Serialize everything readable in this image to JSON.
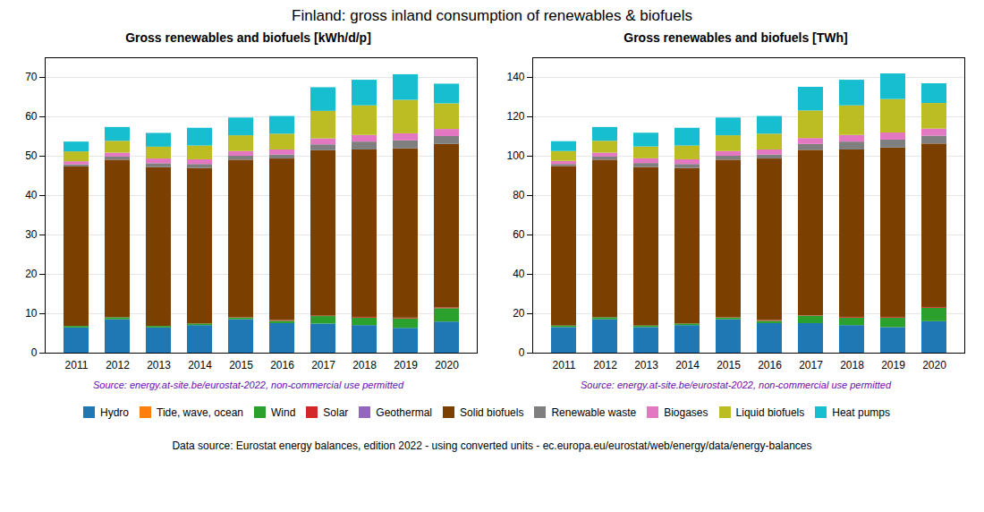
{
  "title": "Finland: gross inland consumption of renewables & biofuels",
  "annotations": [
    "Data source: Eurostat energy balances, edition 2022 - using converted units - ec.europa.eu/eurostat/web/energy/data/energy-balances"
  ],
  "chart_data": [
    {
      "type": "bar",
      "stacked": true,
      "grid": true,
      "subtitle": "Gross renewables and biofuels [kWh/d/p]",
      "annotations": [
        {
          "text": "Source: energy.at-site.be/eurostat-2022, non-commercial use permitted",
          "color": "#6a0dad"
        }
      ],
      "categories": [
        "2011",
        "2012",
        "2013",
        "2014",
        "2015",
        "2016",
        "2017",
        "2018",
        "2019",
        "2020"
      ],
      "ylim": [
        0,
        75
      ],
      "yticks": [
        0,
        10,
        20,
        30,
        40,
        50,
        60,
        70
      ],
      "series": [
        {
          "name": "Hydro",
          "color": "#1f77b4",
          "values": [
            6.4,
            8.5,
            6.4,
            7.0,
            8.5,
            7.5,
            7.4,
            7.0,
            6.3,
            7.9
          ]
        },
        {
          "name": "Tide, wave, ocean",
          "color": "#ff7f0e",
          "values": [
            0.0,
            0.0,
            0.0,
            0.0,
            0.0,
            0.0,
            0.0,
            0.0,
            0.0,
            0.0
          ]
        },
        {
          "name": "Wind",
          "color": "#2ca02c",
          "values": [
            0.4,
            0.5,
            0.4,
            0.4,
            0.4,
            0.6,
            1.9,
            1.9,
            2.4,
            3.4
          ]
        },
        {
          "name": "Solar",
          "color": "#d62728",
          "values": [
            0.0,
            0.0,
            0.0,
            0.0,
            0.1,
            0.2,
            0.1,
            0.2,
            0.2,
            0.2
          ]
        },
        {
          "name": "Geothermal",
          "color": "#9467bd",
          "values": [
            0.0,
            0.0,
            0.0,
            0.0,
            0.0,
            0.0,
            0.0,
            0.0,
            0.0,
            0.0
          ]
        },
        {
          "name": "Solid biofuels",
          "color": "#7B3F00",
          "values": [
            40.5,
            40.0,
            40.3,
            39.5,
            40.0,
            41.0,
            42.0,
            42.5,
            43.0,
            41.5
          ]
        },
        {
          "name": "Renewable waste",
          "color": "#7f7f7f",
          "values": [
            0.5,
            0.8,
            1.0,
            1.0,
            1.0,
            1.0,
            1.5,
            2.0,
            2.0,
            2.0
          ]
        },
        {
          "name": "Biogases",
          "color": "#e377c2",
          "values": [
            0.8,
            1.0,
            1.2,
            1.2,
            1.2,
            1.3,
            1.5,
            1.7,
            1.8,
            1.8
          ]
        },
        {
          "name": "Liquid biofuels",
          "color": "#bcbd22",
          "values": [
            2.5,
            3.0,
            3.0,
            3.5,
            4.0,
            4.0,
            7.0,
            7.5,
            8.5,
            6.5
          ]
        },
        {
          "name": "Heat pumps",
          "color": "#17becf",
          "values": [
            2.5,
            3.5,
            3.5,
            4.5,
            4.5,
            4.5,
            6.0,
            6.5,
            6.5,
            5.0
          ]
        }
      ]
    },
    {
      "type": "bar",
      "stacked": true,
      "grid": true,
      "subtitle": "Gross renewables and biofuels [TWh]",
      "annotations": [
        {
          "text": "Source: energy.at-site.be/eurostat-2022, non-commercial use permitted",
          "color": "#6a0dad"
        }
      ],
      "categories": [
        "2011",
        "2012",
        "2013",
        "2014",
        "2015",
        "2016",
        "2017",
        "2018",
        "2019",
        "2020"
      ],
      "ylim": [
        0,
        150
      ],
      "yticks": [
        0,
        20,
        40,
        60,
        80,
        100,
        120,
        140
      ],
      "series": [
        {
          "name": "Hydro",
          "color": "#1f77b4",
          "values": [
            13.0,
            17.0,
            13.0,
            14.0,
            17.0,
            15.0,
            15.0,
            14.0,
            13.0,
            16.0
          ]
        },
        {
          "name": "Tide, wave, ocean",
          "color": "#ff7f0e",
          "values": [
            0.0,
            0.0,
            0.0,
            0.0,
            0.0,
            0.0,
            0.0,
            0.0,
            0.0,
            0.0
          ]
        },
        {
          "name": "Wind",
          "color": "#2ca02c",
          "values": [
            0.8,
            1.0,
            0.8,
            0.8,
            0.8,
            1.2,
            3.8,
            3.8,
            4.8,
            6.8
          ]
        },
        {
          "name": "Solar",
          "color": "#d62728",
          "values": [
            0.0,
            0.0,
            0.0,
            0.0,
            0.2,
            0.4,
            0.2,
            0.4,
            0.4,
            0.4
          ]
        },
        {
          "name": "Geothermal",
          "color": "#9467bd",
          "values": [
            0.0,
            0.0,
            0.0,
            0.0,
            0.0,
            0.0,
            0.0,
            0.0,
            0.0,
            0.0
          ]
        },
        {
          "name": "Solid biofuels",
          "color": "#7B3F00",
          "values": [
            81.0,
            80.0,
            80.5,
            79.0,
            80.0,
            82.0,
            84.0,
            85.0,
            86.0,
            83.0
          ]
        },
        {
          "name": "Renewable waste",
          "color": "#7f7f7f",
          "values": [
            1.0,
            1.6,
            2.0,
            2.0,
            2.0,
            2.0,
            3.0,
            4.0,
            4.0,
            4.0
          ]
        },
        {
          "name": "Biogases",
          "color": "#e377c2",
          "values": [
            1.6,
            2.0,
            2.4,
            2.4,
            2.4,
            2.6,
            3.0,
            3.4,
            3.6,
            3.6
          ]
        },
        {
          "name": "Liquid biofuels",
          "color": "#bcbd22",
          "values": [
            5.0,
            6.0,
            6.0,
            7.0,
            8.0,
            8.0,
            14.0,
            15.0,
            17.0,
            13.0
          ]
        },
        {
          "name": "Heat pumps",
          "color": "#17becf",
          "values": [
            5.0,
            7.0,
            7.0,
            9.0,
            9.0,
            9.0,
            12.0,
            13.0,
            13.0,
            10.0
          ]
        }
      ]
    }
  ]
}
